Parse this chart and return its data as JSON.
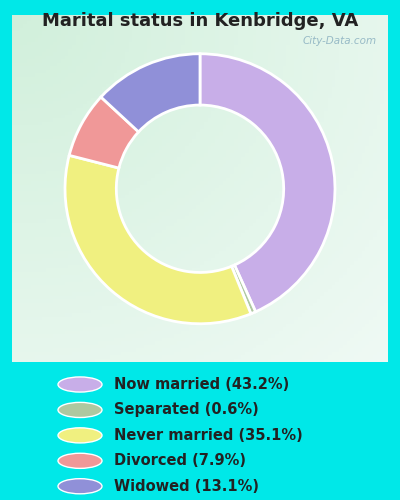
{
  "title": "Marital status in Kenbridge, VA",
  "slices": [
    43.2,
    0.6,
    35.1,
    7.9,
    13.1
  ],
  "labels": [
    "Now married (43.2%)",
    "Separated (0.6%)",
    "Never married (35.1%)",
    "Divorced (7.9%)",
    "Widowed (13.1%)"
  ],
  "colors": [
    "#c8aee8",
    "#aec8a0",
    "#f0f080",
    "#f09898",
    "#9090d8"
  ],
  "background_outer": "#00e8e8",
  "background_inner_top_left": "#d8ede0",
  "background_inner_center": "#e8f5ec",
  "title_fontsize": 13,
  "title_color": "#222222",
  "legend_fontsize": 10.5,
  "watermark": "City-Data.com",
  "donut_width": 0.38
}
